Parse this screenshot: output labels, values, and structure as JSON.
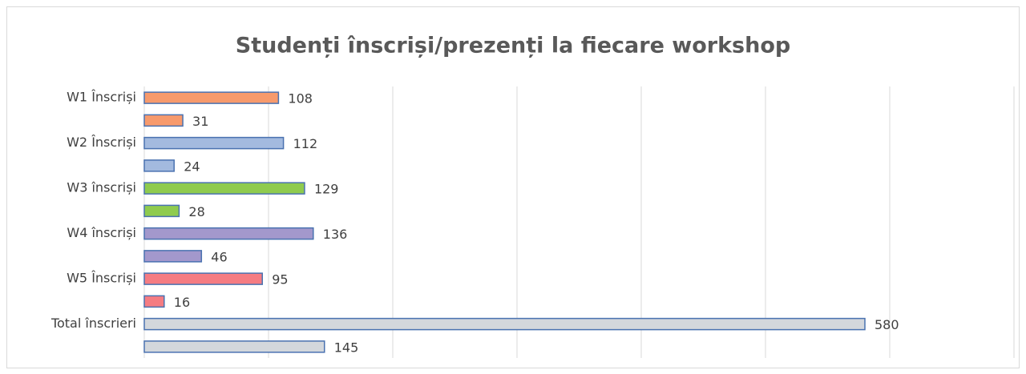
{
  "chart_data": {
    "type": "barh",
    "title": "Studenți înscriși/prezenți la fiecare workshop",
    "categories": [
      "W1 Înscriși",
      null,
      "W2 Înscriși",
      null,
      "W3 înscriși",
      null,
      "W4 înscriși",
      null,
      "W5 Înscriși",
      null,
      "Total înscrieri",
      null
    ],
    "values": [
      108,
      31,
      112,
      24,
      129,
      28,
      136,
      46,
      95,
      16,
      580,
      145
    ],
    "colors": [
      "#f79a6c",
      "#f79a6c",
      "#a3badf",
      "#a3badf",
      "#8fcb4e",
      "#8fcb4e",
      "#a398cc",
      "#a398cc",
      "#f57c82",
      "#f57c82",
      "#d3d7dc",
      "#d3d7dc"
    ],
    "edge_color": "#4a72b0",
    "xlim": [
      0,
      700
    ],
    "xticks": [
      0,
      100,
      200,
      300,
      400,
      500,
      600,
      700
    ],
    "grid": true
  }
}
